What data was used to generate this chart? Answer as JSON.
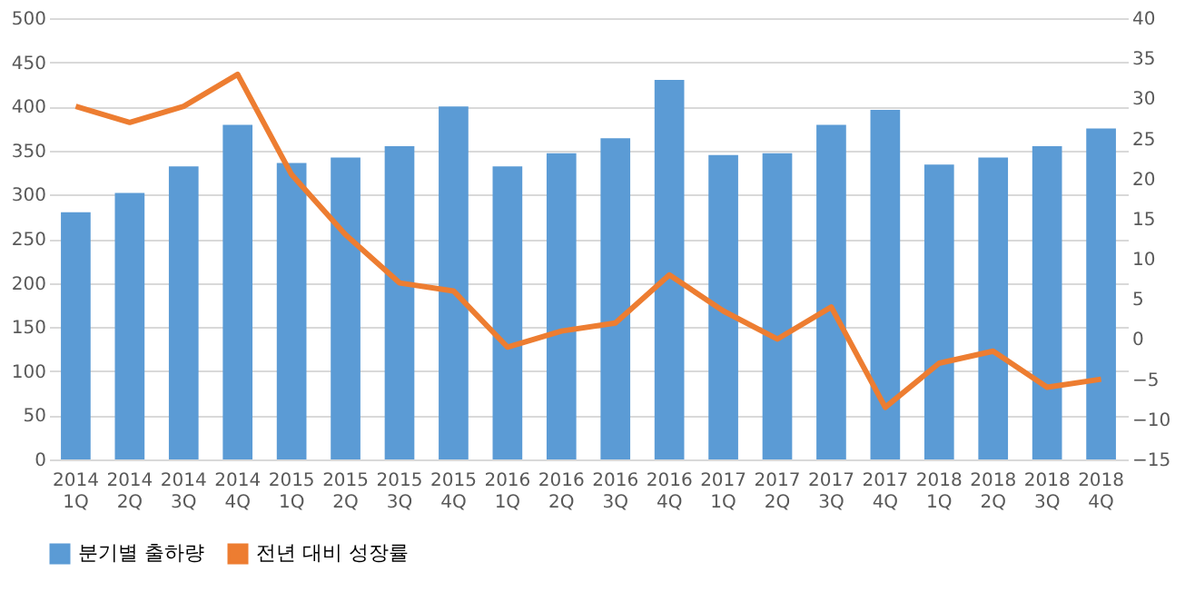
{
  "chart_data": {
    "type": "bar",
    "categories": [
      "2014\n1Q",
      "2014\n2Q",
      "2014\n3Q",
      "2014\n4Q",
      "2015\n1Q",
      "2015\n2Q",
      "2015\n3Q",
      "2015\n4Q",
      "2016\n1Q",
      "2016\n2Q",
      "2016\n3Q",
      "2016\n4Q",
      "2017\n1Q",
      "2017\n2Q",
      "2017\n3Q",
      "2017\n4Q",
      "2018\n1Q",
      "2018\n2Q",
      "2018\n3Q",
      "2018\n4Q"
    ],
    "series": [
      {
        "name": "분기별 출하량",
        "color": "#5b9bd5",
        "values": [
          280,
          302,
          332,
          379,
          336,
          342,
          355,
          400,
          332,
          347,
          364,
          430,
          345,
          347,
          379,
          396,
          334,
          342,
          355,
          375
        ]
      },
      {
        "name": "전년 대비 성장률",
        "color": "#ed7d31",
        "type": "line",
        "axis": "y2",
        "values": [
          29,
          27,
          29,
          33,
          20.5,
          13,
          7,
          6,
          -1,
          1,
          2,
          8,
          3.5,
          0,
          4,
          -8.5,
          -3,
          -1.5,
          -6,
          -5
        ]
      }
    ],
    "ylim": [
      0,
      500
    ],
    "yticks": [
      0,
      50,
      100,
      150,
      200,
      250,
      300,
      350,
      400,
      450,
      500
    ],
    "y2lim": [
      -15,
      40
    ],
    "y2ticks": [
      -15,
      -10,
      -5,
      0,
      5,
      10,
      15,
      20,
      25,
      30,
      35,
      40
    ],
    "grid": "y",
    "legend": "bottom",
    "marker": "none"
  }
}
